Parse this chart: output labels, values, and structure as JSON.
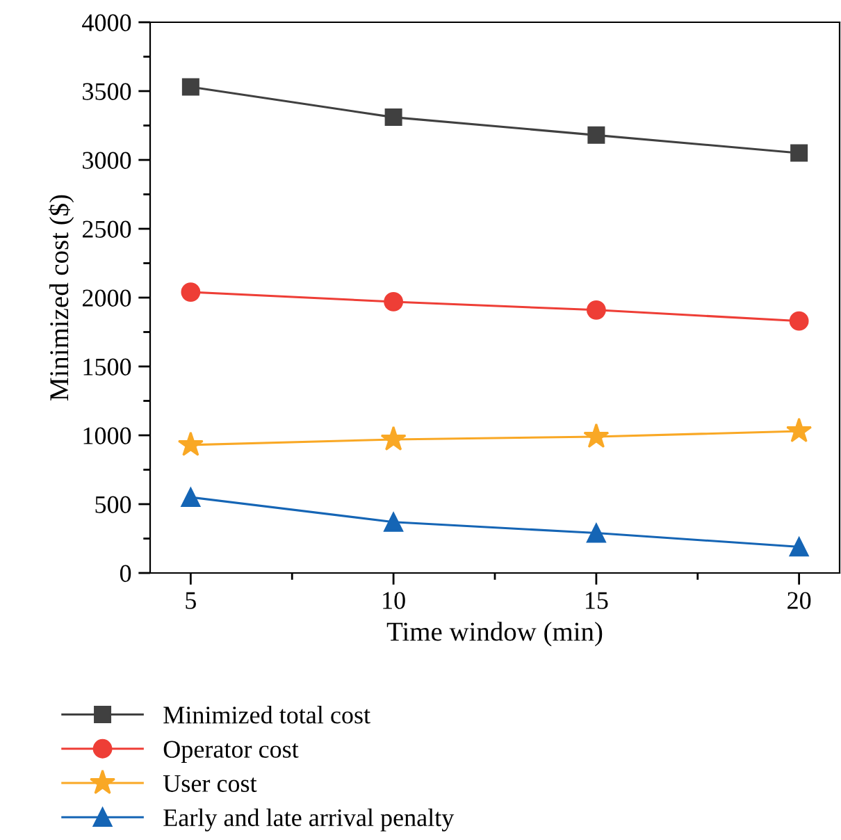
{
  "chart_data": {
    "type": "line",
    "xlabel": "Time window (min)",
    "ylabel": "Minimized cost ($)",
    "x": [
      5,
      10,
      15,
      20
    ],
    "xlim": [
      4,
      21
    ],
    "xticks": [
      5,
      10,
      15,
      20
    ],
    "ylim": [
      0,
      4000
    ],
    "yticks": [
      0,
      500,
      1000,
      1500,
      2000,
      2500,
      3000,
      3500,
      4000
    ],
    "legend": "bottom",
    "grid": false,
    "series": [
      {
        "name": "Minimized total cost",
        "color": "#404040",
        "marker": "square",
        "values": [
          3530,
          3310,
          3180,
          3050
        ]
      },
      {
        "name": "Operator cost",
        "color": "#ee3e36",
        "marker": "circle",
        "values": [
          2040,
          1970,
          1910,
          1830
        ]
      },
      {
        "name": "User cost",
        "color": "#f9a825",
        "marker": "star",
        "values": [
          930,
          970,
          990,
          1030
        ]
      },
      {
        "name": "Early and late arrival penalty",
        "color": "#1565b5",
        "marker": "triangle",
        "values": [
          550,
          370,
          290,
          190
        ]
      }
    ]
  }
}
